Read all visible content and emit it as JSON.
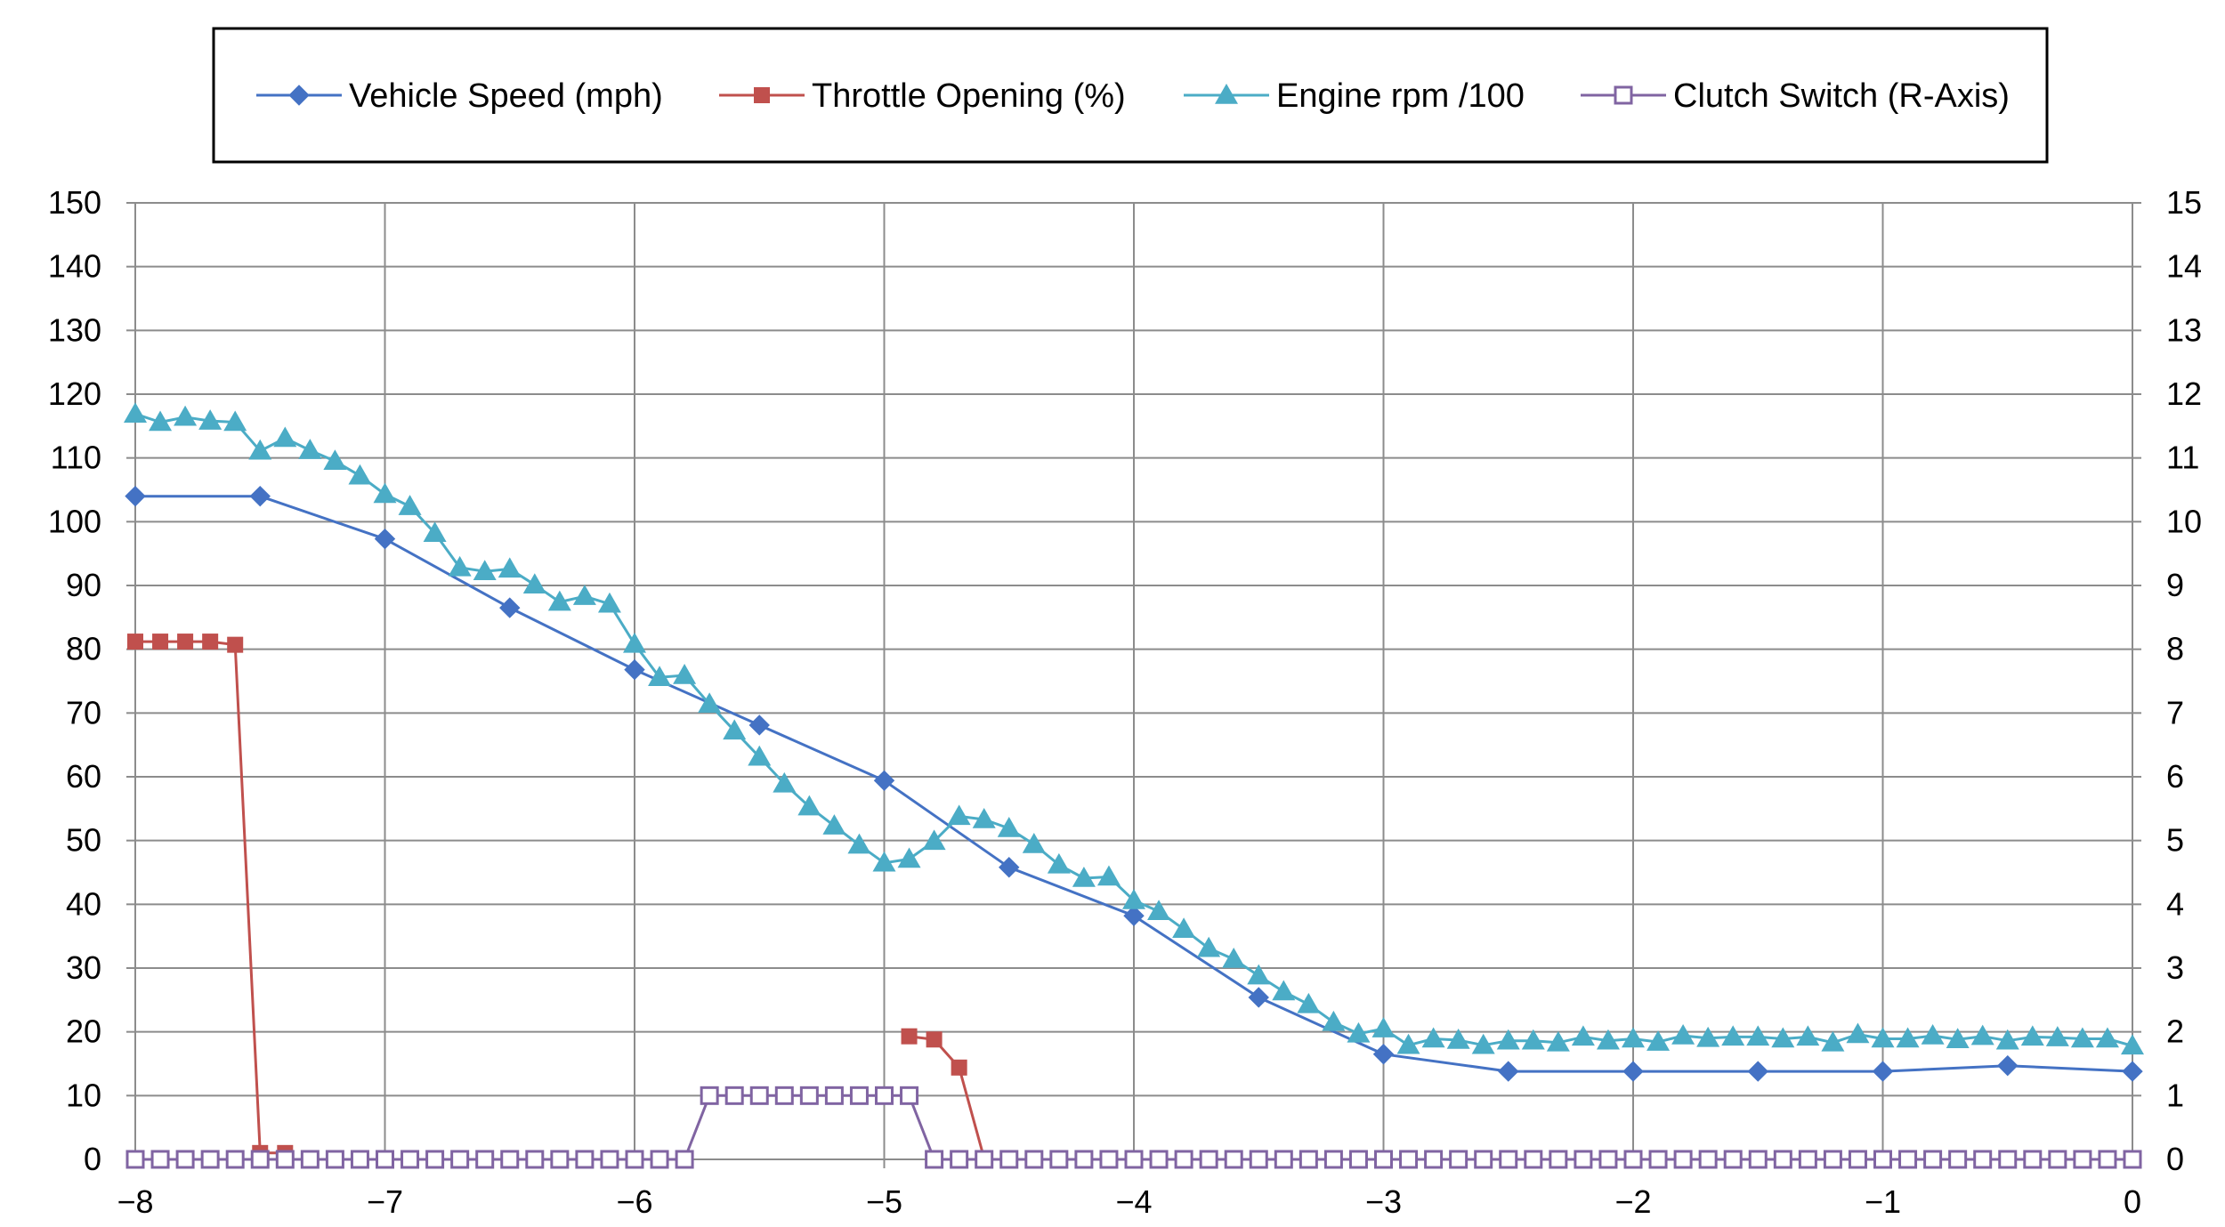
{
  "chart_data": {
    "type": "line",
    "title": "",
    "xlabel": "",
    "ylabel": "",
    "y2label": "",
    "xlim": [
      -8,
      0
    ],
    "ylim": [
      0,
      150
    ],
    "y2lim": [
      0,
      15
    ],
    "grid": true,
    "legend_position": "top",
    "x_ticks": [
      "−8",
      "−7",
      "−6",
      "−5",
      "−4",
      "−3",
      "−2",
      "−1",
      "0"
    ],
    "y_ticks": [
      "0",
      "10",
      "20",
      "30",
      "40",
      "50",
      "60",
      "70",
      "80",
      "90",
      "100",
      "110",
      "120",
      "130",
      "140",
      "150"
    ],
    "y2_ticks": [
      "0",
      "1",
      "2",
      "3",
      "4",
      "5",
      "6",
      "7",
      "8",
      "9",
      "10",
      "11",
      "12",
      "13",
      "14",
      "15"
    ],
    "series": [
      {
        "name": "Vehicle Speed (mph)",
        "axis": "left",
        "color": "#4472C4",
        "marker": "diamond",
        "x": [
          -8,
          -7.5,
          -7,
          -6.5,
          -6,
          -5.5,
          -5,
          -4.5,
          -4,
          -3.5,
          -3,
          -2.5,
          -2,
          -1.5,
          -1,
          -0.5,
          0
        ],
        "y": [
          104,
          104,
          97.3,
          86.5,
          76.8,
          68.1,
          59.4,
          45.8,
          38.2,
          25.4,
          16.5,
          13.8,
          13.8,
          13.8,
          13.8,
          14.7,
          13.8
        ]
      },
      {
        "name": "Throttle Opening (%)",
        "axis": "left",
        "color": "#C0504D",
        "marker": "square",
        "x": [
          -8,
          -7.9,
          -7.8,
          -7.7,
          -7.6,
          -7.5,
          -7.4,
          -4.9,
          -4.8,
          -4.7,
          -4.6
        ],
        "y": [
          81.2,
          81.2,
          81.2,
          81.2,
          80.7,
          1.0,
          1.0,
          19.3,
          18.8,
          14.4,
          0.2
        ],
        "segments": [
          [
            0,
            6
          ],
          [
            7,
            10
          ]
        ]
      },
      {
        "name": "Engine rpm /100",
        "axis": "left",
        "color": "#4BACC6",
        "marker": "triangle",
        "x": [
          -8,
          -7.9,
          -7.8,
          -7.7,
          -7.6,
          -7.5,
          -7.4,
          -7.3,
          -7.2,
          -7.1,
          -7,
          -6.9,
          -6.8,
          -6.7,
          -6.6,
          -6.5,
          -6.4,
          -6.3,
          -6.2,
          -6.1,
          -6,
          -5.9,
          -5.8,
          -5.7,
          -5.6,
          -5.5,
          -5.4,
          -5.3,
          -5.2,
          -5.1,
          -5,
          -4.9,
          -4.8,
          -4.7,
          -4.6,
          -4.5,
          -4.4,
          -4.3,
          -4.2,
          -4.1,
          -4,
          -3.9,
          -3.8,
          -3.7,
          -3.6,
          -3.5,
          -3.4,
          -3.3,
          -3.2,
          -3.1,
          -3,
          -2.9,
          -2.8,
          -2.7,
          -2.6,
          -2.5,
          -2.4,
          -2.3,
          -2.2,
          -2.1,
          -2,
          -1.9,
          -1.8,
          -1.7,
          -1.6,
          -1.5,
          -1.4,
          -1.3,
          -1.2,
          -1.1,
          -1,
          -0.9,
          -0.8,
          -0.7,
          -0.6,
          -0.5,
          -0.4,
          -0.3,
          -0.2,
          -0.1,
          0
        ],
        "y": [
          116.9,
          115.6,
          116.4,
          115.8,
          115.6,
          111.1,
          113.1,
          111.2,
          109.5,
          107.2,
          104.3,
          102.4,
          98.2,
          92.8,
          92.2,
          92.6,
          90.1,
          87.4,
          88.3,
          87.1,
          80.8,
          75.6,
          75.9,
          71.4,
          67.2,
          63.1,
          58.9,
          55.3,
          52.3,
          49.3,
          46.5,
          47.1,
          49.9,
          53.8,
          53.3,
          51.9,
          49.4,
          46.2,
          44.1,
          44.3,
          40.6,
          38.9,
          36.1,
          33.1,
          31.4,
          28.8,
          26.3,
          24.3,
          21.5,
          19.7,
          20.5,
          17.9,
          18.9,
          18.7,
          17.9,
          18.6,
          18.6,
          18.3,
          19.2,
          18.6,
          18.9,
          18.4,
          19.4,
          19.0,
          19.2,
          19.2,
          18.9,
          19.2,
          18.3,
          19.6,
          18.9,
          18.9,
          19.4,
          18.8,
          19.3,
          18.6,
          19.2,
          19.1,
          18.9,
          18.9,
          17.8
        ]
      },
      {
        "name": "Clutch Switch (R-Axis)",
        "axis": "right",
        "color": "#8064A2",
        "marker": "open-square",
        "x": [
          -8,
          -7.9,
          -7.8,
          -7.7,
          -7.6,
          -7.5,
          -7.4,
          -7.3,
          -7.2,
          -7.1,
          -7,
          -6.9,
          -6.8,
          -6.7,
          -6.6,
          -6.5,
          -6.4,
          -6.3,
          -6.2,
          -6.1,
          -6,
          -5.9,
          -5.8,
          -5.7,
          -5.6,
          -5.5,
          -5.4,
          -5.3,
          -5.2,
          -5.1,
          -5,
          -4.9,
          -4.8,
          -4.7,
          -4.6,
          -4.5,
          -4.4,
          -4.3,
          -4.2,
          -4.1,
          -4,
          -3.9,
          -3.8,
          -3.7,
          -3.6,
          -3.5,
          -3.4,
          -3.3,
          -3.2,
          -3.1,
          -3,
          -2.9,
          -2.8,
          -2.7,
          -2.6,
          -2.5,
          -2.4,
          -2.3,
          -2.2,
          -2.1,
          -2,
          -1.9,
          -1.8,
          -1.7,
          -1.6,
          -1.5,
          -1.4,
          -1.3,
          -1.2,
          -1.1,
          -1,
          -0.9,
          -0.8,
          -0.7,
          -0.6,
          -0.5,
          -0.4,
          -0.3,
          -0.2,
          -0.1,
          0
        ],
        "y": [
          0,
          0,
          0,
          0,
          0,
          0,
          0,
          0,
          0,
          0,
          0,
          0,
          0,
          0,
          0,
          0,
          0,
          0,
          0,
          0,
          0,
          0,
          0,
          1,
          1,
          1,
          1,
          1,
          1,
          1,
          1,
          1,
          0,
          0,
          0,
          0,
          0,
          0,
          0,
          0,
          0,
          0,
          0,
          0,
          0,
          0,
          0,
          0,
          0,
          0,
          0,
          0,
          0,
          0,
          0,
          0,
          0,
          0,
          0,
          0,
          0,
          0,
          0,
          0,
          0,
          0,
          0,
          0,
          0,
          0,
          0,
          0,
          0,
          0,
          0,
          0,
          0,
          0,
          0,
          0,
          0
        ]
      }
    ]
  }
}
